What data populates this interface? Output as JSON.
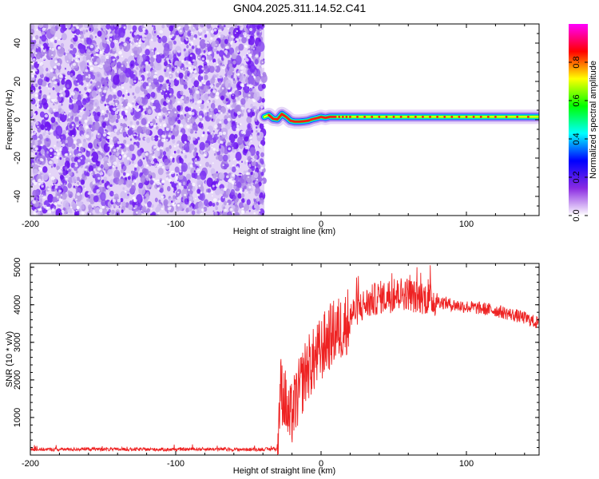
{
  "title": "GN04.2025.311.14.52.C41",
  "chart_data": [
    {
      "type": "heatmap",
      "xlabel": "Height of straight line (km)",
      "ylabel": "Frequency (Hz)",
      "xlim": [
        -200,
        150
      ],
      "ylim": [
        -50,
        50
      ],
      "xticks": [
        "-200",
        "-100",
        "0",
        "100"
      ],
      "yticks": [
        "-40",
        "-20",
        "0",
        "20",
        "40"
      ],
      "colorbar": {
        "label": "Normalized spectral amplitude",
        "ticks": [
          "0.0",
          "0.2",
          "0.4",
          "0.6",
          "0.8"
        ],
        "range": [
          0,
          1
        ],
        "colors": [
          "#ffffff",
          "#8a2be2",
          "#0000ff",
          "#00ffff",
          "#00ff00",
          "#ffff00",
          "#ff0000",
          "#ff00ff"
        ]
      },
      "noise_region_x": [
        -200,
        -39
      ],
      "ridge": {
        "x": [
          -39,
          -36,
          -33,
          -30,
          -27,
          -24,
          -21,
          -18,
          -15,
          -12,
          -9,
          -6,
          -3,
          0,
          3,
          6,
          10,
          20,
          40,
          60,
          80,
          100,
          120,
          150
        ],
        "y": [
          1.5,
          2.5,
          0.5,
          0.2,
          3.0,
          1.5,
          -0.5,
          -1.0,
          -1.0,
          -0.8,
          -0.5,
          0.3,
          0.8,
          1.5,
          1.0,
          1.5,
          1.5,
          1.5,
          1.5,
          1.5,
          1.5,
          1.5,
          1.5,
          1.5
        ]
      }
    },
    {
      "type": "line",
      "xlabel": "Height of straight line (km)",
      "ylabel": "SNR (10 * v/v)",
      "xlim": [
        -200,
        150
      ],
      "ylim": [
        0,
        5100
      ],
      "xticks": [
        "-200",
        "-100",
        "0",
        "100"
      ],
      "yticks": [
        "1000",
        "2000",
        "3000",
        "4000",
        "5000"
      ],
      "color": "#ee2222",
      "series": [
        {
          "x": [
            -200,
            -180,
            -160,
            -140,
            -120,
            -100,
            -80,
            -60,
            -45,
            -30,
            -28,
            -25,
            -22,
            -20,
            -15,
            -10,
            -5,
            0,
            5,
            10,
            15,
            20,
            25,
            30,
            35,
            40,
            45,
            50,
            55,
            60,
            65,
            70,
            75,
            80,
            90,
            100,
            110,
            120,
            130,
            140,
            150
          ],
          "values": [
            150,
            150,
            160,
            150,
            150,
            150,
            160,
            150,
            150,
            160,
            1800,
            1500,
            900,
            1100,
            1700,
            2300,
            2500,
            2800,
            3100,
            3300,
            3400,
            3700,
            3900,
            4000,
            4100,
            4200,
            4200,
            4250,
            4300,
            4300,
            4200,
            4200,
            4150,
            4100,
            4000,
            3950,
            3900,
            3850,
            3750,
            3650,
            3500
          ]
        }
      ]
    }
  ]
}
